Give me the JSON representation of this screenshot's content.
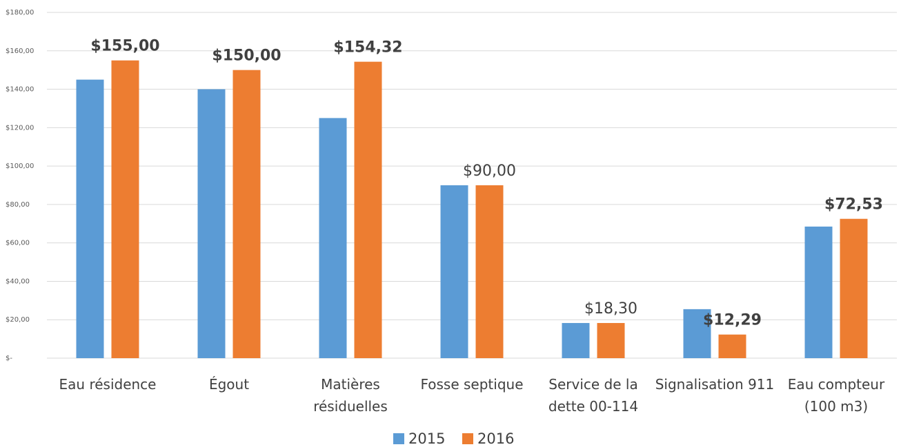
{
  "chart_data": {
    "type": "bar",
    "categories": [
      "Eau résidence",
      "Égout",
      "Matières résiduelles",
      "Fosse septique",
      "Service de la dette 00-114",
      "Signalisation 911",
      "Eau compteur (100 m3)"
    ],
    "series": [
      {
        "name": "2015",
        "color": "#5b9bd5",
        "values": [
          145,
          140,
          125,
          90,
          18.3,
          25.5,
          68.5
        ]
      },
      {
        "name": "2016",
        "color": "#ed7d31",
        "values": [
          155,
          150,
          154.32,
          90,
          18.3,
          12.29,
          72.53
        ],
        "value_labels": [
          "$155,00",
          "$150,00",
          "$154,32",
          "$90,00",
          "$18,30",
          "$12,29",
          "$72,53"
        ],
        "value_label_weights": [
          "bold",
          "bold",
          "bold",
          "normal",
          "normal",
          "bold",
          "bold"
        ]
      }
    ],
    "ylim": [
      0,
      180
    ],
    "yticks": [
      {
        "value": 0,
        "label": "$-"
      },
      {
        "value": 20,
        "label": "$20,00"
      },
      {
        "value": 40,
        "label": "$40,00"
      },
      {
        "value": 60,
        "label": "$60,00"
      },
      {
        "value": 80,
        "label": "$80,00"
      },
      {
        "value": 100,
        "label": "$100,00"
      },
      {
        "value": 120,
        "label": "$120,00"
      },
      {
        "value": 140,
        "label": "$140,00"
      },
      {
        "value": 160,
        "label": "$160,00"
      },
      {
        "value": 180,
        "label": "$180,00"
      }
    ],
    "grid": true,
    "legend": "bottom"
  }
}
